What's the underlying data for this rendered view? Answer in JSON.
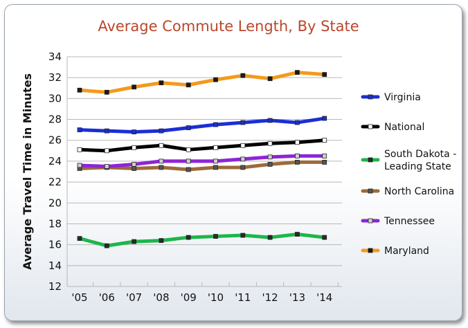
{
  "chart_data": {
    "type": "line",
    "title": "Average Commute Length, By State",
    "xlabel": "",
    "ylabel": "Average Travel Time in Minutes",
    "categories": [
      "'05",
      "'06",
      "'07",
      "'08",
      "'09",
      "'10",
      "'11",
      "'12",
      "'13",
      "'14"
    ],
    "ylim": [
      12,
      34
    ],
    "yticks": [
      12,
      14,
      16,
      18,
      20,
      22,
      24,
      26,
      28,
      30,
      32,
      34
    ],
    "grid": true,
    "legend_position": "right",
    "series": [
      {
        "name": "Virginia",
        "legend_lines": [
          "Virginia"
        ],
        "color": "#1b2fd6",
        "marker_fill": "#1b2fd6",
        "values": [
          27.0,
          26.9,
          26.8,
          26.9,
          27.2,
          27.5,
          27.7,
          27.9,
          27.7,
          28.1
        ]
      },
      {
        "name": "National",
        "legend_lines": [
          "National"
        ],
        "color": "#000000",
        "marker_fill": "#ffffff",
        "values": [
          25.1,
          25.0,
          25.3,
          25.5,
          25.1,
          25.3,
          25.5,
          25.7,
          25.8,
          26.0
        ]
      },
      {
        "name": "South Dakota - Leading State",
        "legend_lines": [
          "South Dakota -",
          "Leading State"
        ],
        "color": "#1db64a",
        "marker_fill": "#2a2a2a",
        "values": [
          16.6,
          15.9,
          16.3,
          16.4,
          16.7,
          16.8,
          16.9,
          16.7,
          17.0,
          16.7
        ]
      },
      {
        "name": "North Carolina",
        "legend_lines": [
          "North Carolina"
        ],
        "color": "#9c6b3a",
        "marker_fill": "#555555",
        "values": [
          23.3,
          23.4,
          23.3,
          23.4,
          23.2,
          23.4,
          23.4,
          23.7,
          23.9,
          23.9
        ]
      },
      {
        "name": "Tennessee",
        "legend_lines": [
          "Tennessee"
        ],
        "color": "#8e24d6",
        "marker_fill": "#cfcfcf",
        "values": [
          23.6,
          23.5,
          23.7,
          24.0,
          24.0,
          24.0,
          24.2,
          24.4,
          24.5,
          24.5
        ]
      },
      {
        "name": "Maryland",
        "legend_lines": [
          "Maryland"
        ],
        "color": "#f39a1c",
        "marker_fill": "#1a1a1a",
        "values": [
          30.8,
          30.6,
          31.1,
          31.5,
          31.3,
          31.8,
          32.2,
          31.9,
          32.5,
          32.3
        ]
      }
    ]
  }
}
